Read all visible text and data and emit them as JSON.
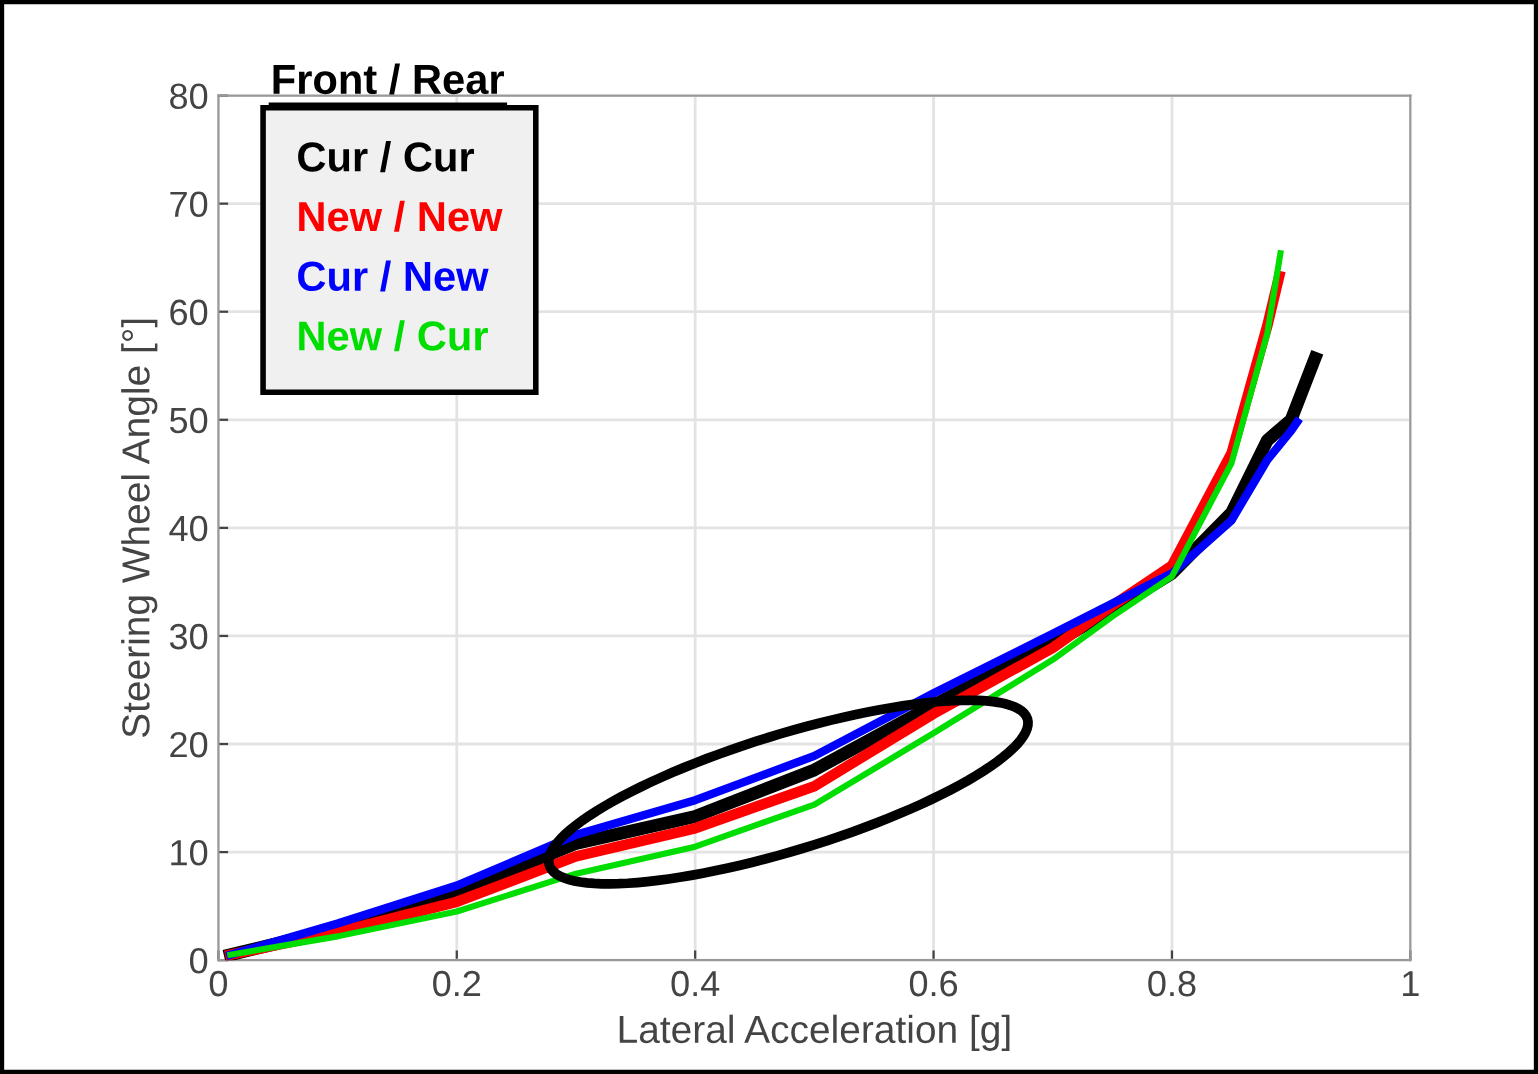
{
  "chart_data": {
    "type": "line",
    "xlabel": "Lateral Acceleration [g]",
    "ylabel": "Steering Wheel Angle [°]",
    "legend_title": "Front / Rear",
    "series": [
      {
        "name": "Cur / Cur",
        "color": "#000000",
        "x": [
          0.01,
          0.1,
          0.2,
          0.3,
          0.4,
          0.5,
          0.6,
          0.7,
          0.75,
          0.8,
          0.85,
          0.88,
          0.9,
          0.92
        ],
        "values": [
          0.5,
          2.9,
          6.2,
          10.8,
          13.3,
          17.6,
          23.6,
          29.3,
          32.4,
          35.8,
          41.4,
          48.1,
          50.0,
          55.7
        ]
      },
      {
        "name": "New / New",
        "color": "#ff0000",
        "x": [
          0.01,
          0.1,
          0.2,
          0.3,
          0.4,
          0.5,
          0.6,
          0.7,
          0.75,
          0.8,
          0.85,
          0.88,
          0.89
        ],
        "values": [
          0.5,
          2.6,
          5.4,
          9.6,
          12.2,
          16.1,
          22.8,
          28.9,
          32.8,
          36.5,
          46.9,
          58.7,
          63.3
        ]
      },
      {
        "name": "Cur / New",
        "color": "#0000ff",
        "x": [
          0.01,
          0.1,
          0.2,
          0.3,
          0.4,
          0.5,
          0.6,
          0.7,
          0.75,
          0.8,
          0.85,
          0.88,
          0.9,
          0.905
        ],
        "values": [
          0.5,
          3.4,
          6.9,
          11.6,
          14.8,
          18.9,
          24.7,
          30.2,
          33.0,
          35.8,
          40.7,
          46.3,
          49.0,
          49.8
        ]
      },
      {
        "name": "New / Cur",
        "color": "#00dd00",
        "x": [
          0.01,
          0.1,
          0.2,
          0.3,
          0.4,
          0.5,
          0.6,
          0.7,
          0.75,
          0.8,
          0.85,
          0.88,
          0.891
        ],
        "values": [
          0.5,
          2.2,
          4.5,
          8.0,
          10.5,
          14.4,
          21.0,
          27.8,
          31.8,
          35.5,
          46.0,
          58.0,
          65.4
        ]
      }
    ],
    "xlim": [
      0,
      1
    ],
    "ylim": [
      0,
      80
    ],
    "xticks": [
      0,
      0.2,
      0.4,
      0.6,
      0.8,
      1
    ],
    "yticks": [
      0,
      10,
      20,
      30,
      40,
      50,
      60,
      70,
      80
    ],
    "grid": true,
    "legend": "top left",
    "marker": "none",
    "line_style": "solid"
  }
}
